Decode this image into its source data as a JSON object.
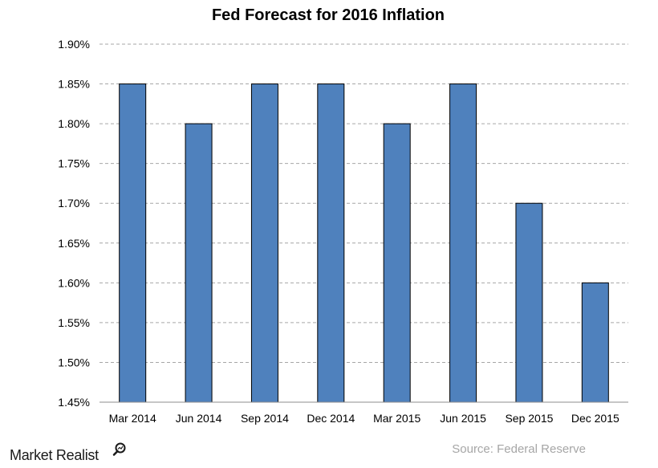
{
  "chart_data": {
    "type": "bar",
    "title": "Fed Forecast for 2016 Inflation",
    "categories": [
      "Mar 2014",
      "Jun 2014",
      "Sep 2014",
      "Dec 2014",
      "Mar 2015",
      "Jun 2015",
      "Sep 2015",
      "Dec 2015"
    ],
    "values": [
      1.85,
      1.8,
      1.85,
      1.85,
      1.8,
      1.85,
      1.7,
      1.6
    ],
    "y_ticks": [
      "1.45%",
      "1.50%",
      "1.55%",
      "1.60%",
      "1.65%",
      "1.70%",
      "1.75%",
      "1.80%",
      "1.85%",
      "1.90%"
    ],
    "ylim": [
      1.45,
      1.9
    ],
    "xlabel": "",
    "ylabel": "",
    "grid": "horizontal-dashed",
    "bar_color": "#4f81bd",
    "source": "Source: Federal Reserve"
  },
  "branding": {
    "name": "Market Realist",
    "icon": "magnifier-icon"
  }
}
